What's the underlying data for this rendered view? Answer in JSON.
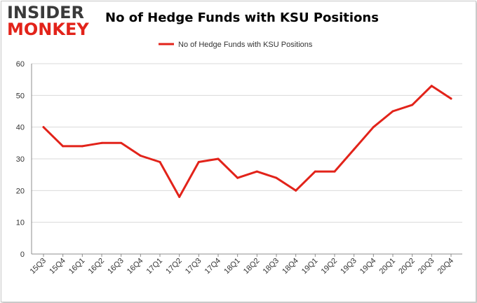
{
  "brand": {
    "logo_top": "INSIDER",
    "logo_bottom": "MONKEY"
  },
  "colors": {
    "series": "#e2231a",
    "grid": "#d9d9d9",
    "logo_dark": "#3a3a3a",
    "logo_red": "#e2231a"
  },
  "chart_data": {
    "type": "line",
    "title": "No of Hedge Funds with KSU Positions",
    "xlabel": "",
    "ylabel": "",
    "ylim": [
      0,
      60
    ],
    "yticks": [
      0,
      10,
      20,
      30,
      40,
      50,
      60
    ],
    "grid": true,
    "legend": "top-center",
    "categories": [
      "15Q3",
      "15Q4",
      "16Q1",
      "16Q2",
      "16Q3",
      "16Q4",
      "17Q1",
      "17Q2",
      "17Q3",
      "17Q4",
      "18Q1",
      "18Q2",
      "18Q3",
      "18Q4",
      "19Q1",
      "19Q2",
      "19Q3",
      "19Q4",
      "20Q1",
      "20Q2",
      "20Q3",
      "20Q4"
    ],
    "series": [
      {
        "name": "No of Hedge Funds with KSU Positions",
        "values": [
          40,
          34,
          34,
          35,
          35,
          31,
          29,
          18,
          29,
          30,
          24,
          26,
          24,
          20,
          26,
          26,
          33,
          40,
          45,
          47,
          53,
          49
        ]
      }
    ]
  }
}
